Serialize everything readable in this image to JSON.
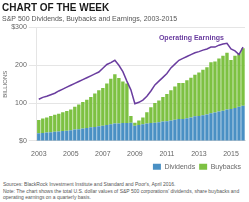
{
  "chart_data": {
    "type": "bar",
    "title": "CHART OF THE WEEK",
    "subtitle": "S&P 500 Dividends, Buybacks and Earnings, 2003-2015",
    "ylabel": "BILLIONS",
    "categories": [
      "2003",
      null,
      null,
      null,
      null,
      null,
      null,
      null,
      "2005",
      null,
      null,
      null,
      null,
      null,
      null,
      null,
      "2007",
      null,
      null,
      null,
      null,
      null,
      null,
      null,
      "2009",
      null,
      null,
      null,
      null,
      null,
      null,
      null,
      "2011",
      null,
      null,
      null,
      null,
      null,
      null,
      null,
      "2013",
      null,
      null,
      null,
      null,
      null,
      null,
      null,
      "2015",
      null,
      null,
      null
    ],
    "series": [
      {
        "name": "Dividends",
        "color": "#4a90c4",
        "values": [
          20,
          21,
          22,
          23,
          24,
          25,
          26,
          27,
          28,
          30,
          31,
          33,
          34,
          36,
          37,
          39,
          40,
          42,
          44,
          46,
          46,
          47,
          47,
          48,
          40,
          42,
          44,
          46,
          47,
          48,
          49,
          51,
          52,
          54,
          56,
          58,
          58,
          60,
          62,
          65,
          66,
          68,
          70,
          73,
          75,
          78,
          80,
          83,
          84,
          87,
          90,
          93
        ]
      },
      {
        "name": "Buybacks",
        "color": "#7dc142",
        "values": [
          35,
          38,
          40,
          43,
          45,
          47,
          50,
          52,
          55,
          60,
          65,
          70,
          75,
          80,
          88,
          95,
          100,
          110,
          120,
          130,
          120,
          110,
          105,
          18,
          8,
          12,
          18,
          30,
          42,
          52,
          58,
          65,
          72,
          80,
          88,
          95,
          95,
          100,
          105,
          110,
          115,
          120,
          125,
          135,
          135,
          140,
          145,
          150,
          130,
          138,
          142,
          152
        ]
      },
      {
        "type": "line",
        "color": "#6a3d9f",
        "values": [
          110,
          115,
          118,
          122,
          126,
          132,
          137,
          142,
          147,
          152,
          157,
          162,
          167,
          172,
          177,
          182,
          192,
          202,
          207,
          213,
          200,
          183,
          158,
          135,
          98,
          102,
          108,
          118,
          132,
          148,
          158,
          168,
          178,
          193,
          203,
          213,
          218,
          223,
          228,
          233,
          236,
          240,
          243,
          248,
          248,
          253,
          256,
          258,
          243,
          238,
          228,
          248
        ]
      }
    ],
    "stacked": true,
    "ylim": [
      0,
      300
    ],
    "yticks": [
      {
        "value": 0,
        "label": "$0"
      },
      100,
      200,
      {
        "value": 300,
        "label": "$300"
      }
    ],
    "grid": "y",
    "legend": "lower right",
    "annotations": [
      {
        "text": "Operating Earnings",
        "x": 30,
        "y": 262,
        "color": "#6a3d9f"
      }
    ],
    "source": "Sources: BlackRock Investment Institute and Standard and Poor's, April 2016.\nNote: The chart shows the total U.S. dollar values of S&P 500 corporations' dividends, share buybacks and\noperating earnings on a quarterly basis."
  }
}
